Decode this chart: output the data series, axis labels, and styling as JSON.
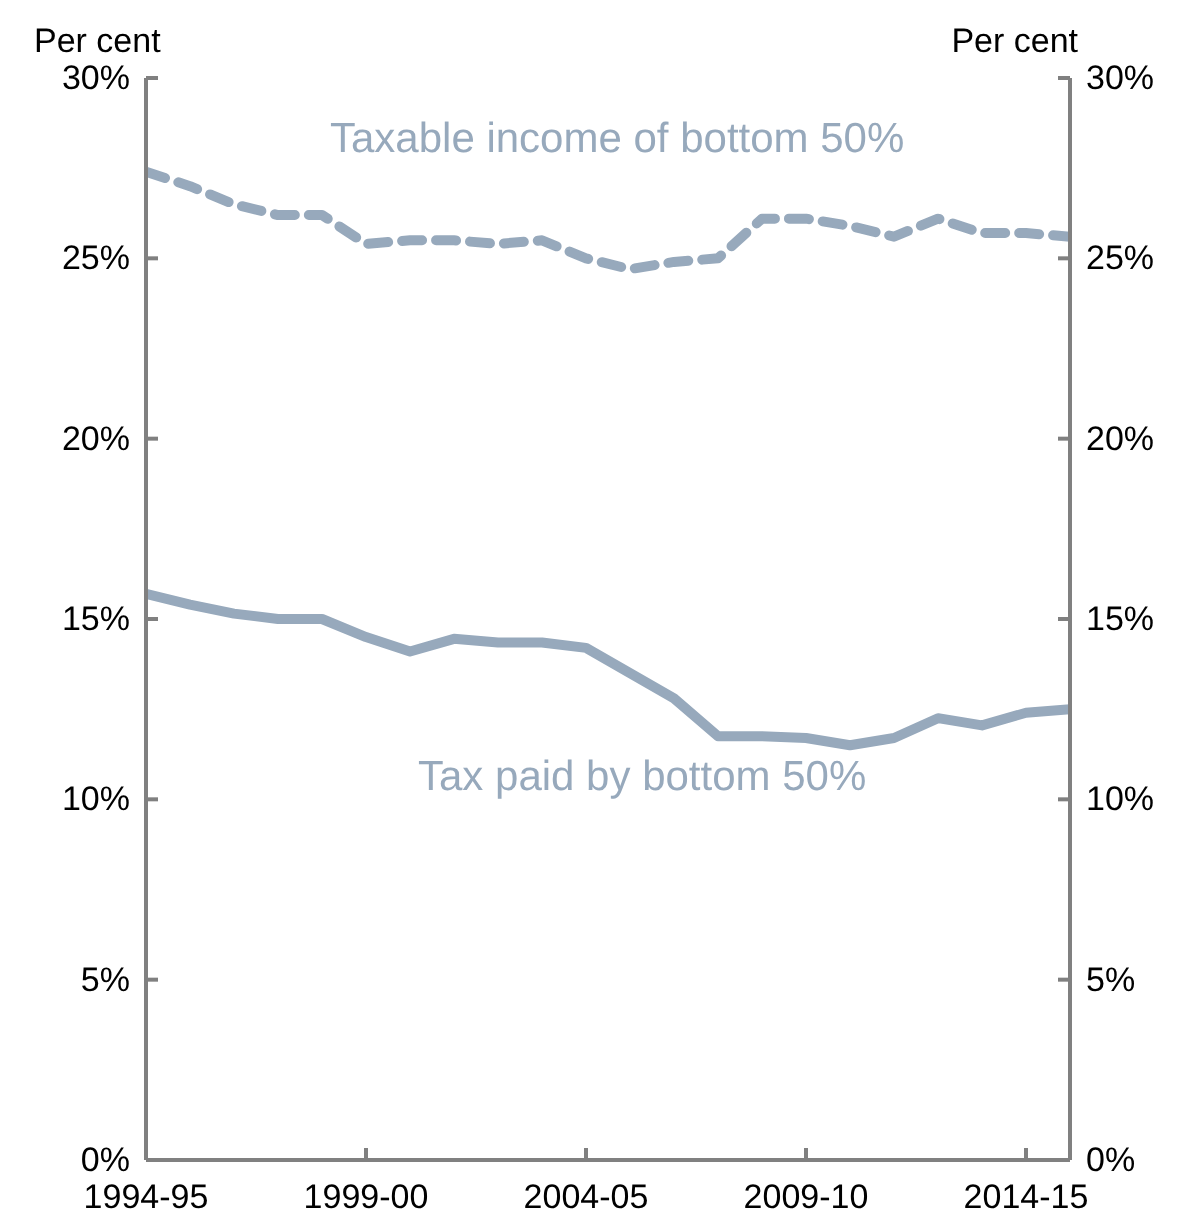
{
  "chart_data": {
    "type": "line",
    "ylabel": "Per cent",
    "y2label": "Per cent",
    "categories": [
      "1994-95",
      null,
      null,
      null,
      null,
      "1999-00",
      null,
      null,
      null,
      null,
      "2004-05",
      null,
      null,
      null,
      null,
      "2009-10",
      null,
      null,
      null,
      null,
      "2014-15",
      null
    ],
    "series": [
      {
        "name": "Taxable income of bottom 50%",
        "color": "#97a9bc",
        "line_style": "dashed",
        "values": [
          27.4,
          27.0,
          26.5,
          26.2,
          26.2,
          25.4,
          25.5,
          25.5,
          25.4,
          25.5,
          25.0,
          24.7,
          24.9,
          25.0,
          26.1,
          26.1,
          25.9,
          25.6,
          26.1,
          25.7,
          25.7,
          25.6
        ]
      },
      {
        "name": "Tax paid by bottom 50%",
        "color": "#97a9bc",
        "line_style": "solid",
        "values": [
          15.7,
          15.4,
          15.15,
          15.0,
          15.0,
          14.5,
          14.1,
          14.45,
          14.35,
          14.35,
          14.2,
          13.5,
          12.8,
          11.75,
          11.75,
          11.7,
          11.5,
          11.7,
          12.25,
          12.05,
          12.4,
          12.5
        ]
      }
    ],
    "ylim": [
      0,
      30
    ],
    "yticks": [
      {
        "value": 0,
        "label": "0%"
      },
      {
        "value": 5,
        "label": "5%"
      },
      {
        "value": 10,
        "label": "10%"
      },
      {
        "value": 15,
        "label": "15%"
      },
      {
        "value": 20,
        "label": "20%"
      },
      {
        "value": 25,
        "label": "25%"
      },
      {
        "value": 30,
        "label": "30%"
      }
    ],
    "y2lim": [
      0,
      30
    ],
    "y2ticks": [
      {
        "value": 0,
        "label": "0%"
      },
      {
        "value": 5,
        "label": "5%"
      },
      {
        "value": 10,
        "label": "10%"
      },
      {
        "value": 15,
        "label": "15%"
      },
      {
        "value": 20,
        "label": "20%"
      },
      {
        "value": 25,
        "label": "25%"
      },
      {
        "value": 30,
        "label": "30%"
      }
    ],
    "grid": false,
    "legend": false,
    "marker": "none"
  }
}
